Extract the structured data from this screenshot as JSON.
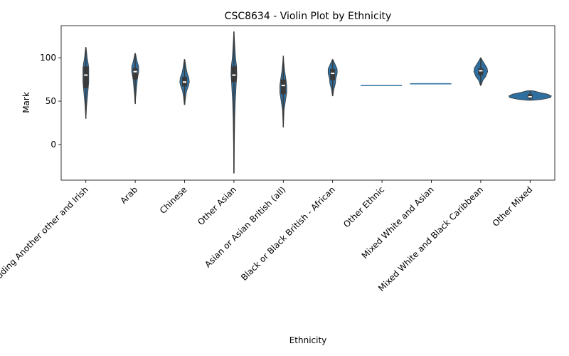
{
  "chart_data": {
    "type": "violin",
    "title": "CSC8634 - Violin Plot by Ethnicity",
    "xlabel": "Ethnicity",
    "ylabel": "Mark",
    "ylim": [
      -41,
      137
    ],
    "yticks": [
      0,
      50,
      100
    ],
    "grid": false,
    "legend": "none",
    "color": "#2f6f9f",
    "box_color": "#3a3a3a",
    "median_color": "#ffffff",
    "categories": [
      "White including Another other and Irish",
      "Arab",
      "Chinese",
      "Other Asian",
      "Asian or Asian British (all)",
      "Black or Black British - African",
      "Other Ethnic",
      "Mixed White and Asian",
      "Mixed White and Black Caribbean",
      "Other Mixed"
    ],
    "violins": [
      {
        "min": 30,
        "max": 112,
        "q1": 65,
        "median": 80,
        "q3": 90,
        "widths": [
          [
            30,
            0.2
          ],
          [
            45,
            1.5
          ],
          [
            55,
            3
          ],
          [
            65,
            4.5
          ],
          [
            72,
            5.5
          ],
          [
            80,
            5.5
          ],
          [
            88,
            5.5
          ],
          [
            93,
            4.5
          ],
          [
            100,
            2.5
          ],
          [
            112,
            0.5
          ]
        ]
      },
      {
        "min": 47,
        "max": 105,
        "q1": 75,
        "median": 84,
        "q3": 88,
        "widths": [
          [
            47,
            0.3
          ],
          [
            55,
            1
          ],
          [
            65,
            2.5
          ],
          [
            75,
            4
          ],
          [
            84,
            6.5
          ],
          [
            90,
            6.5
          ],
          [
            95,
            4
          ],
          [
            105,
            0.5
          ]
        ]
      },
      {
        "min": 46,
        "max": 98,
        "q1": 67,
        "median": 72,
        "q3": 78,
        "widths": [
          [
            46,
            0.5
          ],
          [
            55,
            2
          ],
          [
            62,
            4
          ],
          [
            68,
            7.5
          ],
          [
            72,
            9
          ],
          [
            77,
            8
          ],
          [
            82,
            5
          ],
          [
            88,
            3
          ],
          [
            98,
            0.5
          ]
        ]
      },
      {
        "min": -33,
        "max": 130,
        "q1": 72,
        "median": 80,
        "q3": 90,
        "widths": [
          [
            -33,
            0.4
          ],
          [
            0,
            0.8
          ],
          [
            30,
            1.5
          ],
          [
            50,
            2.5
          ],
          [
            60,
            3.5
          ],
          [
            72,
            4.5
          ],
          [
            80,
            5.5
          ],
          [
            90,
            5
          ],
          [
            100,
            3
          ],
          [
            115,
            1.5
          ],
          [
            130,
            0.3
          ]
        ]
      },
      {
        "min": 20,
        "max": 102,
        "q1": 58,
        "median": 68,
        "q3": 75,
        "widths": [
          [
            20,
            0.3
          ],
          [
            40,
            1.5
          ],
          [
            50,
            4
          ],
          [
            60,
            6.5
          ],
          [
            68,
            6.5
          ],
          [
            75,
            5
          ],
          [
            85,
            2.5
          ],
          [
            95,
            1
          ],
          [
            102,
            0.3
          ]
        ]
      },
      {
        "min": 56,
        "max": 98,
        "q1": 74,
        "median": 82,
        "q3": 87,
        "widths": [
          [
            56,
            0.5
          ],
          [
            63,
            2
          ],
          [
            70,
            5
          ],
          [
            76,
            6
          ],
          [
            82,
            8.5
          ],
          [
            87,
            8.5
          ],
          [
            92,
            5
          ],
          [
            98,
            0.5
          ]
        ]
      },
      {
        "min": 68,
        "max": 68,
        "q1": 68,
        "median": 68,
        "q3": 68,
        "line": true
      },
      {
        "min": 70,
        "max": 70,
        "q1": 70,
        "median": 70,
        "q3": 70,
        "line": true
      },
      {
        "min": 68,
        "max": 100,
        "q1": 80,
        "median": 85,
        "q3": 88,
        "widths": [
          [
            68,
            0.5
          ],
          [
            74,
            4
          ],
          [
            78,
            9
          ],
          [
            84,
            13
          ],
          [
            88,
            12
          ],
          [
            92,
            8
          ],
          [
            96,
            4
          ],
          [
            100,
            0.5
          ]
        ]
      },
      {
        "min": 51,
        "max": 62,
        "q1": 53,
        "median": 55,
        "q3": 58,
        "widths": [
          [
            51,
            5
          ],
          [
            52,
            22
          ],
          [
            54,
            38
          ],
          [
            56,
            40
          ],
          [
            58,
            33
          ],
          [
            60,
            18
          ],
          [
            62,
            5
          ]
        ]
      }
    ]
  }
}
